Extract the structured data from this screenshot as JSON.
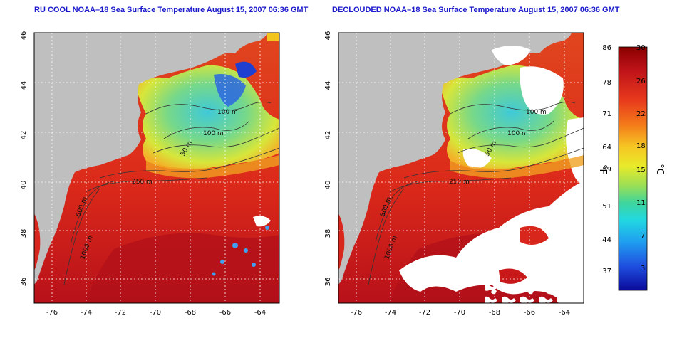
{
  "maps": [
    {
      "title": "RU COOL NOAA–18 Sea Surface Temperature August 15, 2007 06:36 GMT",
      "variant": "cool",
      "lat_ticks": [
        "36",
        "38",
        "40",
        "42",
        "44",
        "46"
      ],
      "lon_ticks": [
        "-76",
        "-74",
        "-72",
        "-70",
        "-68",
        "-66",
        "-64"
      ],
      "isobath_labels": [
        "100 m",
        "100 m",
        "50 m",
        "250 m",
        "500 m",
        "1000 m"
      ]
    },
    {
      "title": "DECLOUDED NOAA–18 Sea Surface Temperature August 15, 2007 06:36 GMT",
      "variant": "declouded",
      "lat_ticks": [
        "36",
        "38",
        "40",
        "42",
        "44",
        "46"
      ],
      "lon_ticks": [
        "-76",
        "-74",
        "-72",
        "-70",
        "-68",
        "-66",
        "-64"
      ],
      "isobath_labels": [
        "100 m",
        "100 m",
        "50 m",
        "250 m",
        "500 m",
        "1000 m"
      ]
    }
  ],
  "colorbar": {
    "fahrenheit_unit": "°F",
    "celsius_unit": "°C",
    "fahrenheit_ticks": [
      "86",
      "78",
      "71",
      "64",
      "59",
      "51",
      "44",
      "37"
    ],
    "celsius_ticks": [
      "30",
      "26",
      "22",
      "18",
      "15",
      "11",
      "7",
      "3"
    ]
  },
  "colors": {
    "land": "#bfbfbf",
    "cloud": "#ffffff",
    "warm": "#d8261c",
    "hot": "#b0101a",
    "cool_shelf": "#5fd48a",
    "cold": "#1f5fe0",
    "title": "#1a1acc"
  }
}
